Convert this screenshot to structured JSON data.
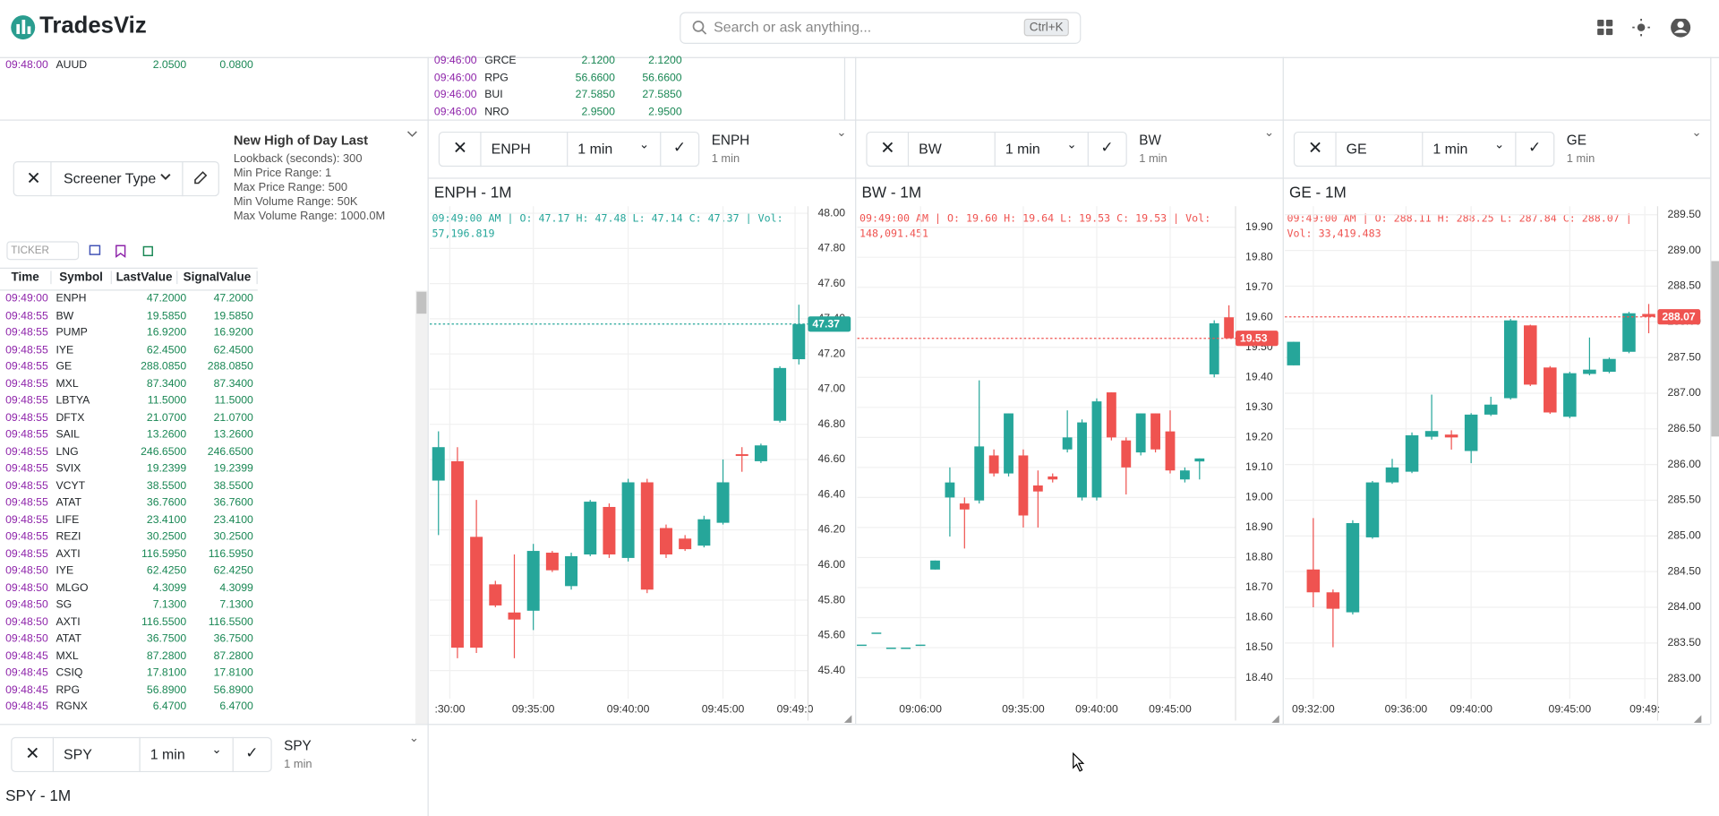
{
  "header": {
    "logo": "TradesViz",
    "search_placeholder": "Search or ask anything...",
    "shortcut": "Ctrl+K"
  },
  "top_left_rows": [
    [
      "09:48:00",
      "AUUD",
      "2.0500",
      "0.0800"
    ]
  ],
  "top_mid_rows": [
    [
      "09:46:00",
      "GRCE",
      "2.1200",
      "2.1200"
    ],
    [
      "09:46:00",
      "RPG",
      "56.6600",
      "56.6600"
    ],
    [
      "09:46:00",
      "BUI",
      "27.5850",
      "27.5850"
    ],
    [
      "09:46:00",
      "NRO",
      "2.9500",
      "2.9500"
    ]
  ],
  "screener": {
    "type_label": "Screener Type",
    "name": "New High of Day Last",
    "params": [
      "Lookback (seconds): 300",
      "Min Price Range: 1",
      "Max Price Range: 500",
      "Min Volume Range: 50K",
      "Max Volume Range: 1000.0M"
    ],
    "ticker_placeholder": "TICKER",
    "columns": [
      "Time",
      "Symbol",
      "LastValue",
      "SignalValue"
    ],
    "rows": [
      [
        "09:49:00",
        "ENPH",
        "47.2000",
        "47.2000"
      ],
      [
        "09:48:55",
        "BW",
        "19.5850",
        "19.5850"
      ],
      [
        "09:48:55",
        "PUMP",
        "16.9200",
        "16.9200"
      ],
      [
        "09:48:55",
        "IYE",
        "62.4500",
        "62.4500"
      ],
      [
        "09:48:55",
        "GE",
        "288.0850",
        "288.0850"
      ],
      [
        "09:48:55",
        "MXL",
        "87.3400",
        "87.3400"
      ],
      [
        "09:48:55",
        "LBTYA",
        "11.5000",
        "11.5000"
      ],
      [
        "09:48:55",
        "DFTX",
        "21.0700",
        "21.0700"
      ],
      [
        "09:48:55",
        "SAIL",
        "13.2600",
        "13.2600"
      ],
      [
        "09:48:55",
        "LNG",
        "246.6500",
        "246.6500"
      ],
      [
        "09:48:55",
        "SVIX",
        "19.2399",
        "19.2399"
      ],
      [
        "09:48:55",
        "VCYT",
        "38.5500",
        "38.5500"
      ],
      [
        "09:48:55",
        "ATAT",
        "36.7600",
        "36.7600"
      ],
      [
        "09:48:55",
        "LIFE",
        "23.4100",
        "23.4100"
      ],
      [
        "09:48:55",
        "REZI",
        "30.2500",
        "30.2500"
      ],
      [
        "09:48:55",
        "AXTI",
        "116.5950",
        "116.5950"
      ],
      [
        "09:48:50",
        "IYE",
        "62.4250",
        "62.4250"
      ],
      [
        "09:48:50",
        "MLGO",
        "4.3099",
        "4.3099"
      ],
      [
        "09:48:50",
        "SG",
        "7.1300",
        "7.1300"
      ],
      [
        "09:48:50",
        "AXTI",
        "116.5500",
        "116.5500"
      ],
      [
        "09:48:50",
        "ATAT",
        "36.7500",
        "36.7500"
      ],
      [
        "09:48:45",
        "MXL",
        "87.2800",
        "87.2800"
      ],
      [
        "09:48:45",
        "CSIQ",
        "17.8100",
        "17.8100"
      ],
      [
        "09:48:45",
        "RPG",
        "56.8900",
        "56.8900"
      ],
      [
        "09:48:45",
        "RGNX",
        "6.4700",
        "6.4700"
      ]
    ]
  },
  "charts": [
    {
      "type": "candlestick",
      "symbol": "ENPH",
      "interval": "1 min",
      "title": "ENPH",
      "subtitle": "1 min",
      "chart_title": "ENPH - 1M",
      "info": "09:49:00 AM | O: 47.17 H: 47.48 L: 47.14 C: 47.37 | Vol: 57,196.819",
      "up_color": "#26a69a",
      "down_color": "#ef5350",
      "last_price": 47.37,
      "ylim": [
        45.24,
        48.04
      ],
      "yticks": [
        {
          "value": 45.4,
          "label": "45.40"
        },
        {
          "value": 45.6,
          "label": "45.60"
        },
        {
          "value": 45.8,
          "label": "45.80"
        },
        {
          "value": 46,
          "label": "46.00"
        },
        {
          "value": 46.2,
          "label": "46.20"
        },
        {
          "value": 46.4,
          "label": "46.40"
        },
        {
          "value": 46.6,
          "label": "46.60"
        },
        {
          "value": 46.8,
          "label": "46.80"
        },
        {
          "value": 47,
          "label": "47.00"
        },
        {
          "value": 47.2,
          "label": "47.20"
        },
        {
          "value": 47.4,
          "label": "47.40"
        },
        {
          "value": 47.6,
          "label": "47.60"
        },
        {
          "value": 47.8,
          "label": "47.80"
        },
        {
          "value": 48,
          "label": "48.00"
        }
      ],
      "xlim": [
        -0.46,
        19.48
      ],
      "xticks": [
        {
          "value": 0.6,
          "label": ":30:00"
        },
        {
          "value": 5,
          "label": "09:35:00"
        },
        {
          "value": 10,
          "label": "09:40:00"
        },
        {
          "value": 15,
          "label": "09:45:00"
        },
        {
          "value": 18.8,
          "label": "09:49:0"
        }
      ],
      "candles": [
        {
          "open": 46.48,
          "high": 46.76,
          "low": 46.17,
          "close": 46.67
        },
        {
          "open": 46.59,
          "high": 46.67,
          "low": 45.47,
          "close": 45.53
        },
        {
          "open": 46.16,
          "high": 46.37,
          "low": 45.5,
          "close": 45.53
        },
        {
          "open": 45.89,
          "high": 45.91,
          "low": 45.76,
          "close": 45.77
        },
        {
          "open": 45.73,
          "high": 46.06,
          "low": 45.47,
          "close": 45.69
        },
        {
          "open": 45.74,
          "high": 46.12,
          "low": 45.63,
          "close": 46.08
        },
        {
          "open": 46.07,
          "high": 46.08,
          "low": 45.96,
          "close": 45.97
        },
        {
          "open": 45.88,
          "high": 46.07,
          "low": 45.86,
          "close": 46.05
        },
        {
          "open": 46.06,
          "high": 46.37,
          "low": 46.05,
          "close": 46.36
        },
        {
          "open": 46.33,
          "high": 46.35,
          "low": 46.04,
          "close": 46.06
        },
        {
          "open": 46.04,
          "high": 46.49,
          "low": 46.02,
          "close": 46.47
        },
        {
          "open": 46.47,
          "high": 46.49,
          "low": 45.84,
          "close": 45.86
        },
        {
          "open": 46.21,
          "high": 46.23,
          "low": 46.04,
          "close": 46.06
        },
        {
          "open": 46.15,
          "high": 46.17,
          "low": 46.08,
          "close": 46.09
        },
        {
          "open": 46.11,
          "high": 46.28,
          "low": 46.1,
          "close": 46.26
        },
        {
          "open": 46.24,
          "high": 46.6,
          "low": 46.23,
          "close": 46.47
        },
        {
          "open": 46.63,
          "high": 46.67,
          "low": 46.53,
          "close": 46.62
        },
        {
          "open": 46.59,
          "high": 46.69,
          "low": 46.58,
          "close": 46.68
        },
        {
          "open": 46.82,
          "high": 47.13,
          "low": 46.81,
          "close": 47.12
        },
        {
          "open": 47.17,
          "high": 47.48,
          "low": 47.14,
          "close": 47.37
        }
      ]
    },
    {
      "type": "candlestick",
      "symbol": "BW",
      "interval": "1 min",
      "title": "BW",
      "subtitle": "1 min",
      "chart_title": "BW - 1M",
      "info": "09:49:00 AM | O: 19.60 H: 19.64 L: 19.53 C: 19.53 | Vol: 148,091.451",
      "up_color": "#26a69a",
      "down_color": "#ef5350",
      "last_price": 19.53,
      "ylim": [
        18.33,
        19.97
      ],
      "yticks": [
        {
          "value": 18.4,
          "label": "18.40"
        },
        {
          "value": 18.5,
          "label": "18.50"
        },
        {
          "value": 18.6,
          "label": "18.60"
        },
        {
          "value": 18.7,
          "label": "18.70"
        },
        {
          "value": 18.8,
          "label": "18.80"
        },
        {
          "value": 18.9,
          "label": "18.90"
        },
        {
          "value": 19,
          "label": "19.00"
        },
        {
          "value": 19.1,
          "label": "19.10"
        },
        {
          "value": 19.2,
          "label": "19.20"
        },
        {
          "value": 19.3,
          "label": "19.30"
        },
        {
          "value": 19.4,
          "label": "19.40"
        },
        {
          "value": 19.5,
          "label": "19.50"
        },
        {
          "value": 19.6,
          "label": "19.60"
        },
        {
          "value": 19.7,
          "label": "19.70"
        },
        {
          "value": 19.8,
          "label": "19.80"
        },
        {
          "value": 19.9,
          "label": "19.90"
        }
      ],
      "xlim": [
        -0.3,
        25.45
      ],
      "xticks": [
        {
          "value": 4,
          "label": "09:06:00"
        },
        {
          "value": 11,
          "label": "09:35:00"
        },
        {
          "value": 16,
          "label": "09:40:00"
        },
        {
          "value": 21,
          "label": "09:45:00"
        }
      ],
      "candles": [
        {
          "open": 18.51,
          "high": 18.51,
          "low": 18.51,
          "close": 18.51
        },
        {
          "open": 18.55,
          "high": 18.55,
          "low": 18.55,
          "close": 18.55
        },
        {
          "open": 18.5,
          "high": 18.5,
          "low": 18.5,
          "close": 18.5
        },
        {
          "open": 18.5,
          "high": 18.5,
          "low": 18.5,
          "close": 18.5
        },
        {
          "open": 18.51,
          "high": 18.51,
          "low": 18.51,
          "close": 18.51
        },
        {
          "open": 18.76,
          "high": 18.79,
          "low": 18.76,
          "close": 18.79
        },
        {
          "open": 19,
          "high": 19.1,
          "low": 18.87,
          "close": 19.05
        },
        {
          "open": 18.98,
          "high": 19,
          "low": 18.83,
          "close": 18.96
        },
        {
          "open": 18.99,
          "high": 19.39,
          "low": 18.98,
          "close": 19.17
        },
        {
          "open": 19.14,
          "high": 19.16,
          "low": 19.07,
          "close": 19.08
        },
        {
          "open": 19.08,
          "high": 19.28,
          "low": 19.07,
          "close": 19.28
        },
        {
          "open": 19.14,
          "high": 19.16,
          "low": 18.9,
          "close": 18.94
        },
        {
          "open": 19.04,
          "high": 19.09,
          "low": 18.9,
          "close": 19.02
        },
        {
          "open": 19.07,
          "high": 19.08,
          "low": 19.05,
          "close": 19.06
        },
        {
          "open": 19.16,
          "high": 19.29,
          "low": 19.15,
          "close": 19.2
        },
        {
          "open": 19,
          "high": 19.26,
          "low": 18.99,
          "close": 19.25
        },
        {
          "open": 19,
          "high": 19.33,
          "low": 18.99,
          "close": 19.32
        },
        {
          "open": 19.35,
          "high": 19.35,
          "low": 19.19,
          "close": 19.2
        },
        {
          "open": 19.19,
          "high": 19.2,
          "low": 19.01,
          "close": 19.1
        },
        {
          "open": 19.15,
          "high": 19.28,
          "low": 19.14,
          "close": 19.28
        },
        {
          "open": 19.28,
          "high": 19.28,
          "low": 19.15,
          "close": 19.16
        },
        {
          "open": 19.22,
          "high": 19.29,
          "low": 19.08,
          "close": 19.09
        },
        {
          "open": 19.06,
          "high": 19.1,
          "low": 19.05,
          "close": 19.09
        },
        {
          "open": 19.12,
          "high": 19.13,
          "low": 19.06,
          "close": 19.13
        },
        {
          "open": 19.41,
          "high": 19.59,
          "low": 19.4,
          "close": 19.58
        },
        {
          "open": 19.6,
          "high": 19.64,
          "low": 19.53,
          "close": 19.53
        }
      ]
    },
    {
      "type": "candlestick",
      "symbol": "GE",
      "interval": "1 min",
      "title": "GE",
      "subtitle": "1 min",
      "chart_title": "GE - 1M",
      "info": "09:49:00 AM | O: 288.11 H: 288.25 L: 287.84 C: 288.07 | Vol: 33,419.483",
      "up_color": "#26a69a",
      "down_color": "#ef5350",
      "last_price": 288.07,
      "ylim": [
        282.72,
        289.62
      ],
      "yticks": [
        {
          "value": 283,
          "label": "283.00"
        },
        {
          "value": 283.5,
          "label": "283.50"
        },
        {
          "value": 284,
          "label": "284.00"
        },
        {
          "value": 284.5,
          "label": "284.50"
        },
        {
          "value": 285,
          "label": "285.00"
        },
        {
          "value": 285.5,
          "label": "285.50"
        },
        {
          "value": 286,
          "label": "286.00"
        },
        {
          "value": 286.5,
          "label": "286.50"
        },
        {
          "value": 287,
          "label": "287.00"
        },
        {
          "value": 287.5,
          "label": "287.50"
        },
        {
          "value": 288,
          "label": "288.00"
        },
        {
          "value": 288.5,
          "label": "288.50"
        },
        {
          "value": 289,
          "label": "289.00"
        },
        {
          "value": 289.5,
          "label": "289.50"
        }
      ],
      "xlim": [
        -0.44,
        18.45
      ],
      "xticks": [
        {
          "value": 1,
          "label": "09:32:00"
        },
        {
          "value": 5.7,
          "label": "09:36:00"
        },
        {
          "value": 9,
          "label": "09:40:00"
        },
        {
          "value": 14,
          "label": "09:45:00"
        },
        {
          "value": 17.8,
          "label": "09:49:"
        }
      ],
      "candles": [
        {
          "open": 287.39,
          "high": 287.72,
          "low": 287.39,
          "close": 287.72
        },
        {
          "open": 284.53,
          "high": 285.25,
          "low": 284,
          "close": 284.21
        },
        {
          "open": 284.21,
          "high": 284.25,
          "low": 283.44,
          "close": 283.98
        },
        {
          "open": 283.93,
          "high": 285.22,
          "low": 283.9,
          "close": 285.18
        },
        {
          "open": 284.98,
          "high": 285.77,
          "low": 284.96,
          "close": 285.75
        },
        {
          "open": 285.75,
          "high": 286.08,
          "low": 285.73,
          "close": 285.96
        },
        {
          "open": 285.9,
          "high": 286.45,
          "low": 285.88,
          "close": 286.41
        },
        {
          "open": 286.39,
          "high": 286.98,
          "low": 286.35,
          "close": 286.47
        },
        {
          "open": 286.42,
          "high": 286.48,
          "low": 286.21,
          "close": 286.38
        },
        {
          "open": 286.19,
          "high": 286.72,
          "low": 286.02,
          "close": 286.7
        },
        {
          "open": 286.7,
          "high": 286.95,
          "low": 286.68,
          "close": 286.84
        },
        {
          "open": 286.93,
          "high": 288.04,
          "low": 286.91,
          "close": 288.02
        },
        {
          "open": 287.95,
          "high": 287.96,
          "low": 287.1,
          "close": 287.12
        },
        {
          "open": 287.36,
          "high": 287.38,
          "low": 286.71,
          "close": 286.73
        },
        {
          "open": 286.67,
          "high": 287.3,
          "low": 286.65,
          "close": 287.28
        },
        {
          "open": 287.27,
          "high": 287.78,
          "low": 287.25,
          "close": 287.33
        },
        {
          "open": 287.3,
          "high": 287.5,
          "low": 287.28,
          "close": 287.48
        },
        {
          "open": 287.58,
          "high": 288.14,
          "low": 287.56,
          "close": 288.12
        },
        {
          "open": 288.11,
          "high": 288.25,
          "low": 287.84,
          "close": 288.07
        }
      ]
    }
  ],
  "spy_panel": {
    "symbol": "SPY",
    "interval": "1 min",
    "title": "SPY",
    "subtitle": "1 min",
    "chart_title": "SPY - 1M"
  }
}
